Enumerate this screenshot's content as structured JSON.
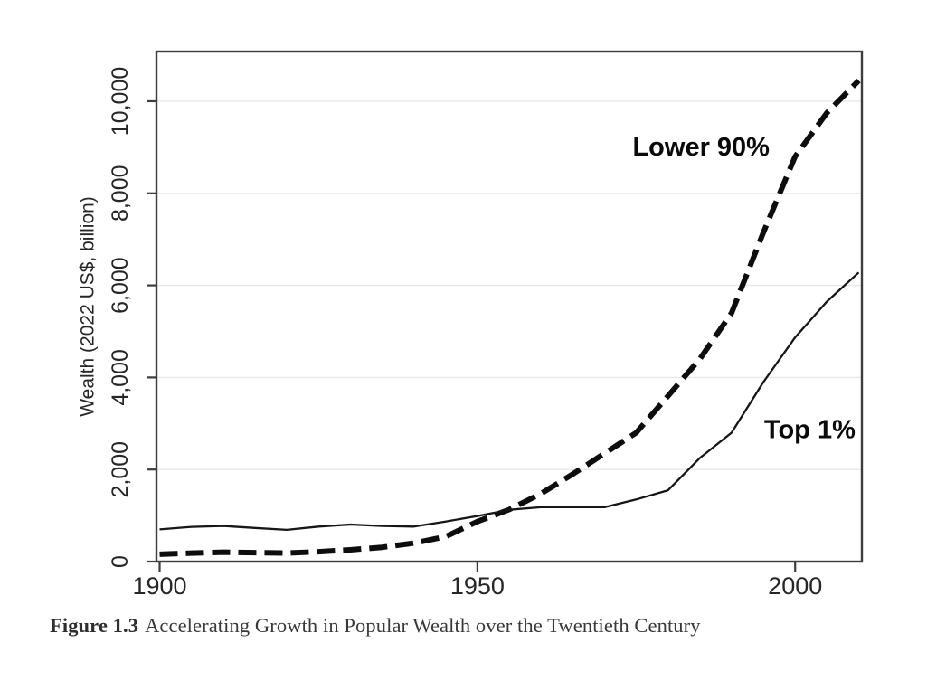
{
  "figure": {
    "caption_label": "Figure 1.3",
    "caption_text": "Accelerating Growth in Popular Wealth over the Twentieth Century"
  },
  "chart_data": {
    "type": "line",
    "title": "",
    "xlabel": "",
    "ylabel": "Wealth (2022 US$, billion)",
    "xlim": [
      1899.5,
      2010.5
    ],
    "ylim": [
      0,
      11080
    ],
    "grid": "horizontal-only",
    "frame": true,
    "legend_position": "inline-annotations",
    "x_ticks": [
      {
        "v": 1900,
        "label": "1900"
      },
      {
        "v": 1950,
        "label": "1950"
      },
      {
        "v": 2000,
        "label": "2000"
      }
    ],
    "y_ticks": [
      {
        "v": 0,
        "label": "0"
      },
      {
        "v": 2000,
        "label": "2,000"
      },
      {
        "v": 4000,
        "label": "4,000"
      },
      {
        "v": 6000,
        "label": "6,000"
      },
      {
        "v": 8000,
        "label": "8,000"
      },
      {
        "v": 10000,
        "label": "10,000"
      }
    ],
    "x": [
      1900,
      1905,
      1910,
      1915,
      1920,
      1925,
      1930,
      1935,
      1940,
      1945,
      1950,
      1955,
      1960,
      1965,
      1970,
      1975,
      1980,
      1985,
      1990,
      1995,
      2000,
      2005,
      2010
    ],
    "series": [
      {
        "name": "Lower 90%",
        "line_style": "dashed",
        "color": "#0d0d0d",
        "stroke_width": 6,
        "dash": "20 9",
        "values": [
          160,
          185,
          205,
          195,
          185,
          215,
          255,
          310,
          400,
          540,
          870,
          1130,
          1475,
          1900,
          2350,
          2800,
          3600,
          4400,
          5400,
          7150,
          8800,
          9750,
          10450
        ]
      },
      {
        "name": "Top 1%",
        "line_style": "solid",
        "color": "#161616",
        "stroke_width": 2.3,
        "dash": "",
        "values": [
          700,
          755,
          775,
          730,
          690,
          760,
          805,
          775,
          760,
          870,
          990,
          1125,
          1180,
          1180,
          1180,
          1350,
          1550,
          2250,
          2800,
          3900,
          4870,
          5650,
          6280
        ]
      }
    ],
    "annotations": [
      {
        "text": "Lower 90%",
        "x": 1985.2,
        "y": 9000,
        "for_series": "Lower 90%"
      },
      {
        "text": "Top 1%",
        "x": 2002.3,
        "y": 2860,
        "for_series": "Top 1%"
      }
    ]
  },
  "colors": {
    "background": "#ffffff",
    "gridline": "#e8e8e8",
    "frame": "#3d3d3d",
    "tick": "#3d3d3d",
    "tick_label": "#262626",
    "axis_title": "#262626",
    "annotation_text": "#0a0a0a",
    "caption_text": "#383838"
  }
}
